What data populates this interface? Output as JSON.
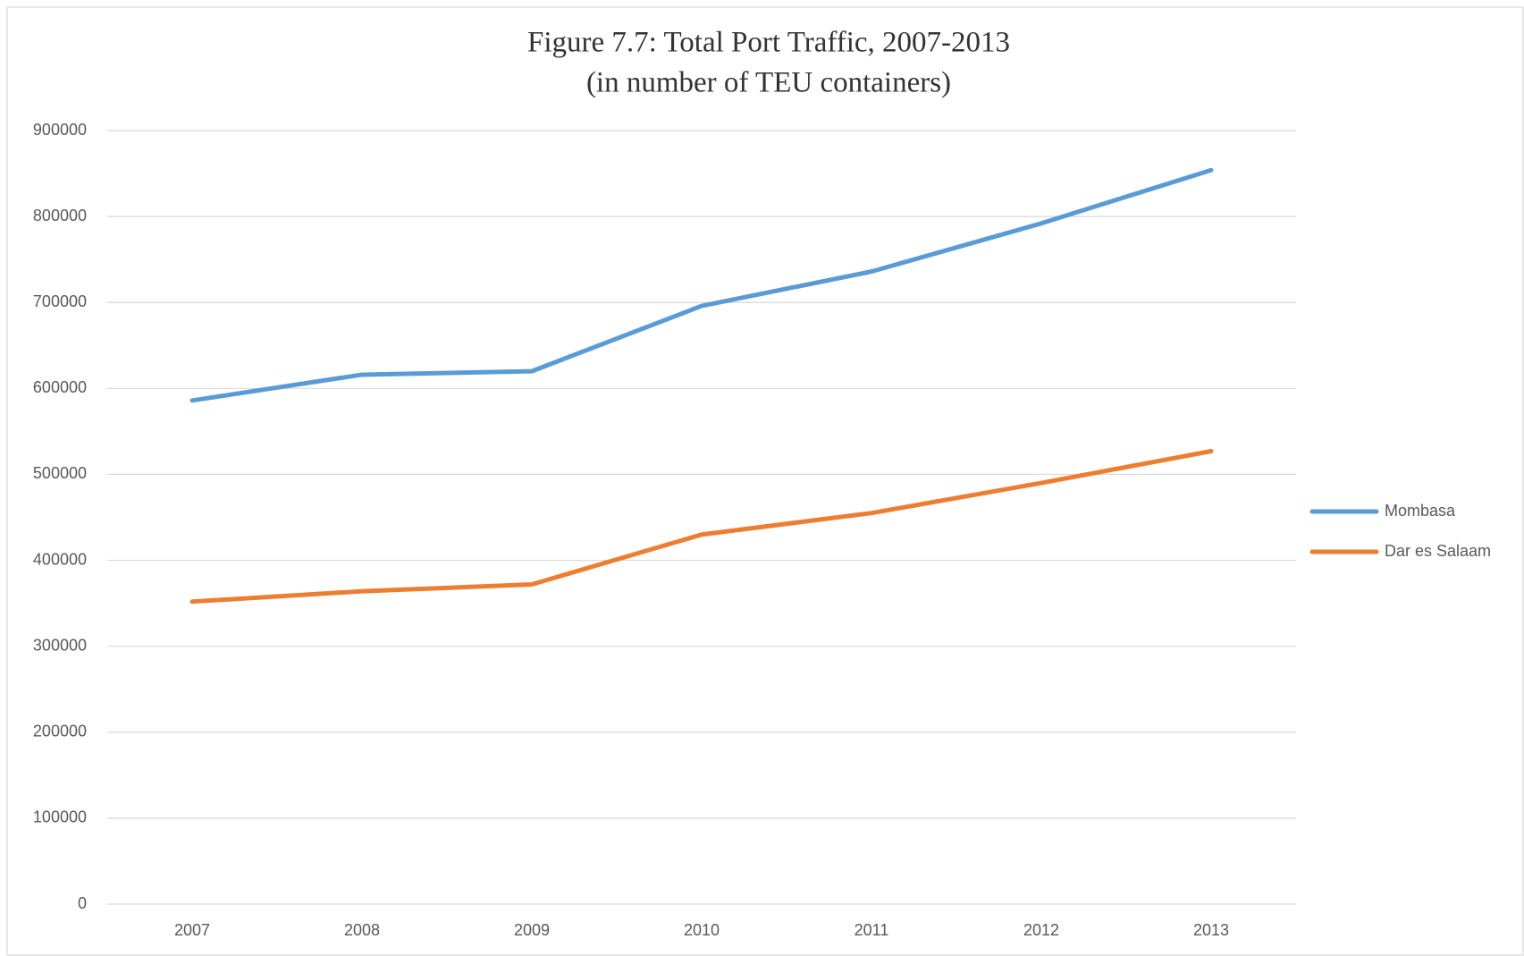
{
  "chart_data": {
    "type": "line",
    "title": "Figure 7.7: Total Port Traffic, 2007-2013",
    "subtitle": "(in number of TEU containers)",
    "categories": [
      "2007",
      "2008",
      "2009",
      "2010",
      "2011",
      "2012",
      "2013"
    ],
    "series": [
      {
        "name": "Mombasa",
        "color": "#5b9bd5",
        "values": [
          586000,
          616000,
          620000,
          696000,
          736000,
          792000,
          854000
        ]
      },
      {
        "name": "Dar es Salaam",
        "color": "#ed7d31",
        "values": [
          352000,
          364000,
          372000,
          430000,
          455000,
          490000,
          527000
        ]
      }
    ],
    "ylim": [
      0,
      900000
    ],
    "yticks": [
      0,
      100000,
      200000,
      300000,
      400000,
      500000,
      600000,
      700000,
      800000,
      900000
    ],
    "grid": true,
    "legend": "right"
  }
}
